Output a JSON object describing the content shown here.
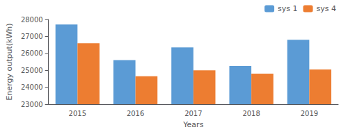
{
  "chart_data": {
    "type": "bar",
    "xlabel": "Years",
    "ylabel": "Energy output(kWh)",
    "categories": [
      "2015",
      "2016",
      "2017",
      "2018",
      "2019"
    ],
    "series": [
      {
        "name": "sys 1",
        "color": "#5B9BD5",
        "values": [
          27700,
          25600,
          26350,
          25250,
          26800
        ]
      },
      {
        "name": "sys 4",
        "color": "#ED7D31",
        "values": [
          26600,
          24650,
          25000,
          24800,
          25050
        ]
      }
    ],
    "ylim": [
      23000,
      28000
    ],
    "yticks": [
      23000,
      24000,
      25000,
      26000,
      27000,
      28000
    ],
    "legend": "upper right",
    "grid": false
  }
}
